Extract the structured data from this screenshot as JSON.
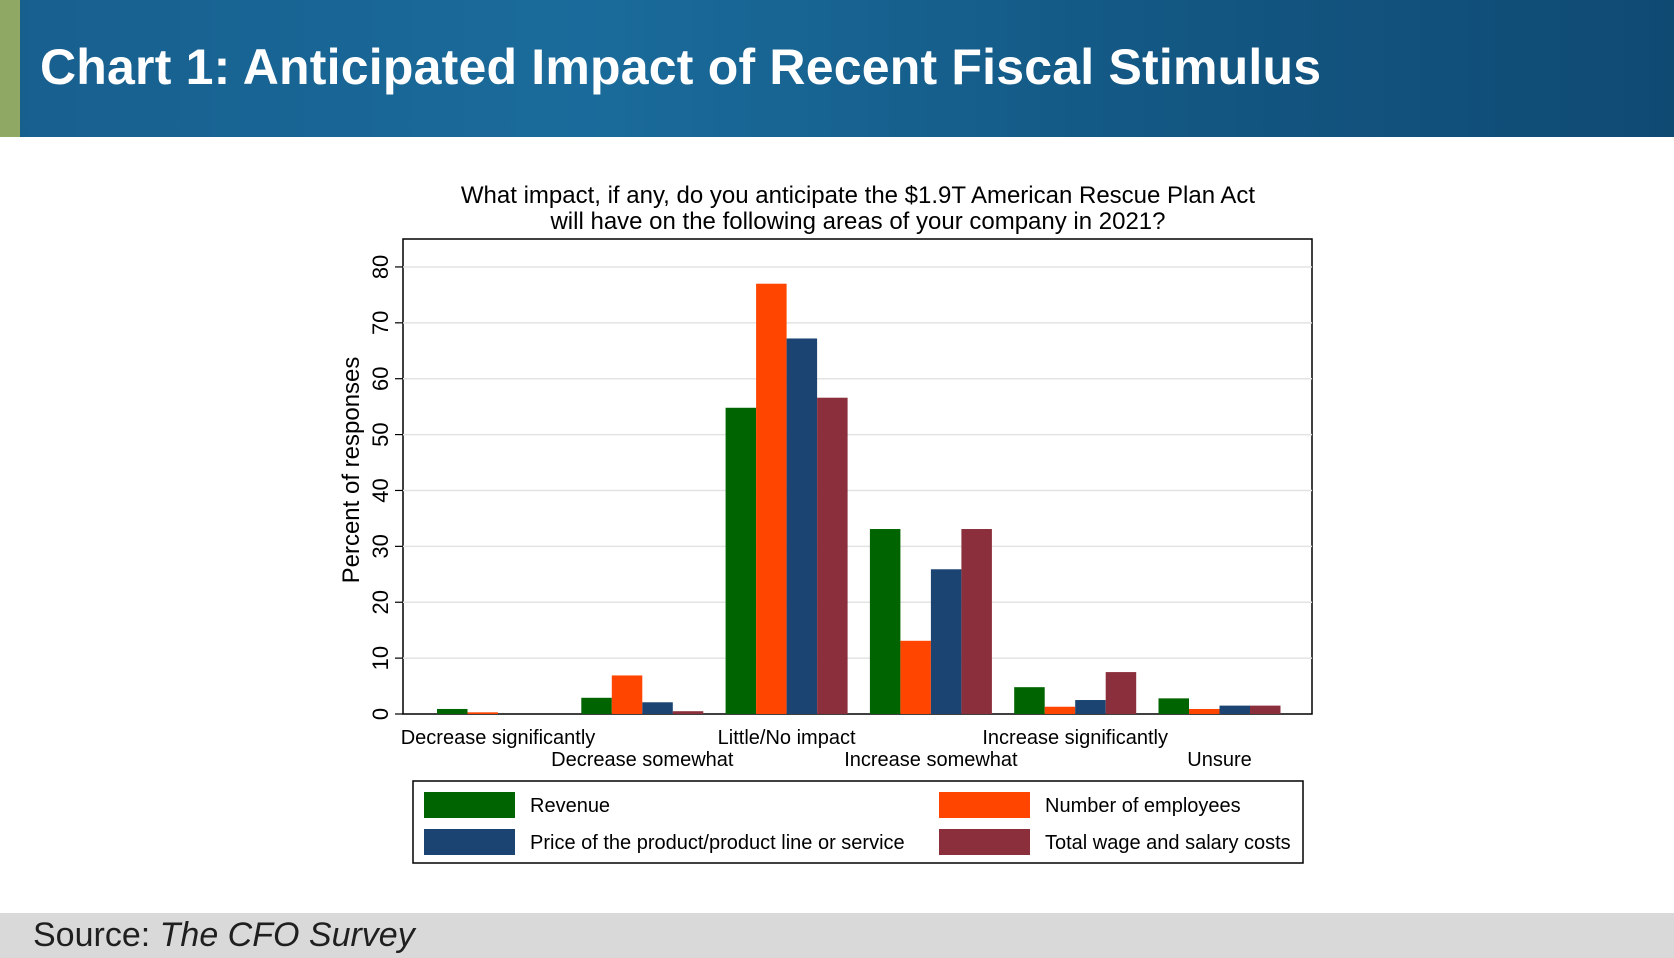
{
  "header": {
    "title": "Chart 1: Anticipated Impact of Recent Fiscal Stimulus"
  },
  "footer": {
    "source_label": "Source:",
    "source_name": "The CFO Survey"
  },
  "colors": {
    "header_accent": "#8fa964"
  },
  "chart_data": {
    "type": "bar",
    "title_lines": [
      "What impact, if any, do you anticipate the $1.9T American Rescue Plan Act",
      "will have on the following areas of your company in 2021?"
    ],
    "xlabel": "",
    "ylabel": "Percent of responses",
    "ylim": [
      0,
      85
    ],
    "yticks": [
      0,
      10,
      20,
      30,
      40,
      50,
      60,
      70,
      80
    ],
    "grid": true,
    "legend_position": "bottom",
    "categories": [
      "Decrease significantly",
      "Decrease somewhat",
      "Little/No impact",
      "Increase somewhat",
      "Increase significantly",
      "Unsure"
    ],
    "series": [
      {
        "name": "Revenue",
        "color": "#006400",
        "values": [
          0.9,
          2.9,
          54.8,
          33.1,
          4.8,
          2.8
        ]
      },
      {
        "name": "Number of employees",
        "color": "#ff4500",
        "values": [
          0.3,
          6.9,
          77.0,
          13.1,
          1.3,
          0.9
        ]
      },
      {
        "name": "Price of the product/product line or service",
        "color": "#1b4473",
        "values": [
          0.0,
          2.1,
          67.2,
          25.9,
          2.5,
          1.5
        ]
      },
      {
        "name": "Total wage and salary costs",
        "color": "#8b2f3c",
        "values": [
          0.0,
          0.5,
          56.6,
          33.1,
          7.5,
          1.5
        ]
      }
    ]
  }
}
